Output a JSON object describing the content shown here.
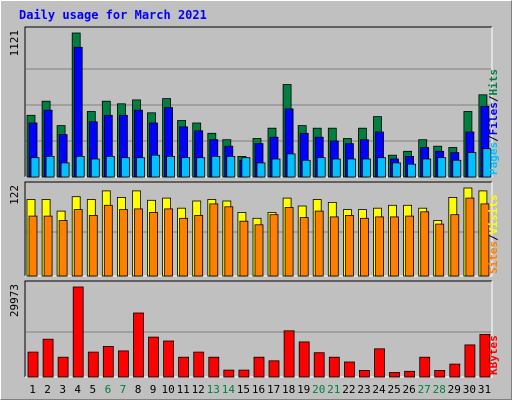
{
  "title": "Daily usage for March 2021",
  "colors": {
    "background": "#c0c0c0",
    "hits": "#008040",
    "files": "#0000ff",
    "pages": "#00c0ff",
    "visits": "#ffff00",
    "sites": "#ff8000",
    "kbytes": "#ff0000",
    "weekend_label": "#008040",
    "gridline": "#808080"
  },
  "chart_data": [
    {
      "type": "bar",
      "panel": "hits-files-pages",
      "categories": [
        "1",
        "2",
        "3",
        "4",
        "5",
        "6",
        "7",
        "8",
        "9",
        "10",
        "11",
        "12",
        "13",
        "14",
        "15",
        "16",
        "17",
        "18",
        "19",
        "20",
        "21",
        "22",
        "23",
        "24",
        "25",
        "26",
        "27",
        "28",
        "29",
        "30",
        "31"
      ],
      "weekend_days": [
        "6",
        "7",
        "13",
        "14",
        "20",
        "21",
        "27",
        "28"
      ],
      "ymax_label": "1121",
      "ylim": [
        0,
        1121
      ],
      "legend": [
        {
          "label": "Pages",
          "color_key": "pages"
        },
        {
          "label": "Files",
          "color_key": "files"
        },
        {
          "label": "Hits",
          "color_key": "hits"
        }
      ],
      "series": [
        {
          "name": "Hits",
          "color_key": "hits",
          "values": [
            480,
            590,
            400,
            1121,
            510,
            590,
            570,
            600,
            500,
            610,
            440,
            420,
            340,
            290,
            160,
            300,
            380,
            720,
            400,
            380,
            380,
            300,
            380,
            470,
            170,
            200,
            290,
            240,
            230,
            510,
            640
          ]
        },
        {
          "name": "Files",
          "color_key": "files",
          "values": [
            420,
            520,
            330,
            1010,
            430,
            480,
            480,
            520,
            420,
            540,
            390,
            360,
            290,
            240,
            130,
            260,
            310,
            530,
            340,
            310,
            280,
            260,
            290,
            350,
            140,
            160,
            230,
            200,
            190,
            350,
            550
          ]
        },
        {
          "name": "Pages",
          "color_key": "pages",
          "values": [
            150,
            160,
            110,
            160,
            140,
            160,
            150,
            150,
            170,
            160,
            150,
            150,
            160,
            160,
            150,
            110,
            140,
            180,
            130,
            150,
            140,
            140,
            140,
            150,
            110,
            100,
            140,
            150,
            130,
            190,
            220
          ]
        }
      ]
    },
    {
      "type": "bar",
      "panel": "visits-sites",
      "categories": [
        "1",
        "2",
        "3",
        "4",
        "5",
        "6",
        "7",
        "8",
        "9",
        "10",
        "11",
        "12",
        "13",
        "14",
        "15",
        "16",
        "17",
        "18",
        "19",
        "20",
        "21",
        "22",
        "23",
        "24",
        "25",
        "26",
        "27",
        "28",
        "29",
        "30",
        "31"
      ],
      "ymax_label": "122",
      "ylim": [
        0,
        122
      ],
      "legend": [
        {
          "label": "Sites",
          "color_key": "sites"
        },
        {
          "label": "Visits",
          "color_key": "visits"
        }
      ],
      "series": [
        {
          "name": "Visits",
          "color_key": "visits",
          "values": [
            106,
            106,
            90,
            110,
            106,
            118,
            109,
            118,
            105,
            108,
            94,
            104,
            106,
            104,
            88,
            80,
            88,
            108,
            97,
            106,
            102,
            92,
            92,
            94,
            98,
            98,
            94,
            77,
            109,
            122,
            118
          ]
        },
        {
          "name": "Sites",
          "color_key": "sites",
          "values": [
            83,
            83,
            77,
            92,
            84,
            98,
            92,
            93,
            88,
            93,
            80,
            84,
            100,
            96,
            76,
            71,
            85,
            95,
            81,
            90,
            82,
            84,
            80,
            82,
            82,
            83,
            89,
            72,
            85,
            108,
            100
          ]
        }
      ]
    },
    {
      "type": "bar",
      "panel": "kbytes",
      "categories": [
        "1",
        "2",
        "3",
        "4",
        "5",
        "6",
        "7",
        "8",
        "9",
        "10",
        "11",
        "12",
        "13",
        "14",
        "15",
        "16",
        "17",
        "18",
        "19",
        "20",
        "21",
        "22",
        "23",
        "24",
        "25",
        "26",
        "27",
        "28",
        "29",
        "30",
        "31"
      ],
      "ymax_label": "29973",
      "ylim": [
        0,
        29973
      ],
      "legend": [
        {
          "label": "KBytes",
          "color_key": "kbytes"
        }
      ],
      "series": [
        {
          "name": "KBytes",
          "color_key": "kbytes",
          "values": [
            8300,
            12600,
            6600,
            29973,
            8300,
            10200,
            8700,
            21300,
            13300,
            12000,
            6600,
            8300,
            6600,
            2300,
            2300,
            6600,
            5400,
            15400,
            11700,
            8100,
            6600,
            5000,
            2200,
            9400,
            1500,
            1900,
            6600,
            2200,
            4300,
            10700,
            14200
          ]
        }
      ]
    }
  ]
}
